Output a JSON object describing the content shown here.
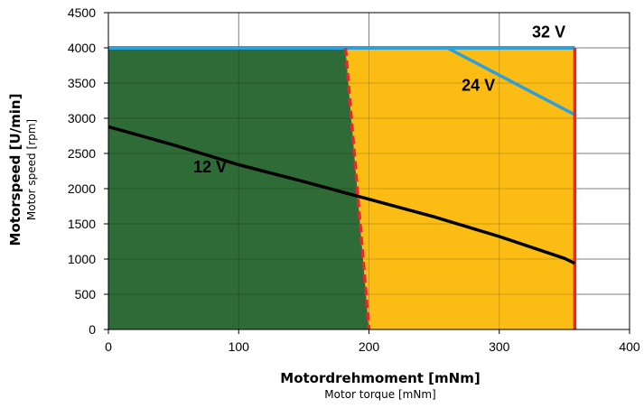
{
  "chart_data": {
    "type": "area",
    "xlabel": "Motordrehmoment [mNm]",
    "xlabel_sub": "Motor torque [mNm]",
    "ylabel": "Motorspeed [U/min]",
    "ylabel_sub": "Motor speed [rpm]",
    "xlim": [
      0,
      400
    ],
    "ylim": [
      0,
      4500
    ],
    "x_ticks": [
      0,
      100,
      200,
      300,
      400
    ],
    "y_ticks": [
      0,
      500,
      1000,
      1500,
      2000,
      2500,
      3000,
      3500,
      4000,
      4500
    ],
    "grid": true,
    "colors": {
      "continuous_region": "#2f6b36",
      "intermittent_region": "#fbbd13",
      "speed_limit_line": "#2e9fd8",
      "torque_limit_line": "#e8262b",
      "curve": "#000000"
    },
    "regions": [
      {
        "name": "continuous",
        "polygon": [
          [
            0,
            0
          ],
          [
            0,
            4000
          ],
          [
            182,
            4000
          ],
          [
            200,
            0
          ]
        ]
      },
      {
        "name": "intermittent",
        "polygon": [
          [
            182,
            4000
          ],
          [
            358,
            4000
          ],
          [
            358,
            0
          ],
          [
            200,
            0
          ]
        ]
      }
    ],
    "series": [
      {
        "key": "v12",
        "label": "12 V",
        "x": [
          0,
          50,
          100,
          150,
          200,
          250,
          300,
          350,
          358
        ],
        "y": [
          2880,
          2620,
          2340,
          2100,
          1850,
          1600,
          1320,
          1010,
          940
        ]
      },
      {
        "key": "v24",
        "label": "24 V",
        "x": [
          0,
          260,
          358
        ],
        "y": [
          4000,
          4000,
          3050
        ]
      },
      {
        "key": "v32",
        "label": "32 V",
        "x": [
          0,
          358
        ],
        "y": [
          4000,
          4000
        ]
      },
      {
        "key": "cont_limit",
        "x": [
          182,
          200
        ],
        "y": [
          4000,
          0
        ]
      },
      {
        "key": "torque_limit",
        "x": [
          358,
          358
        ],
        "y": [
          0,
          4000
        ]
      }
    ],
    "annotations": [
      {
        "text": "12 V",
        "x": 78,
        "y": 2230
      },
      {
        "text": "24 V",
        "x": 284,
        "y": 3390
      },
      {
        "text": "32 V",
        "x": 338,
        "y": 4150
      }
    ]
  }
}
